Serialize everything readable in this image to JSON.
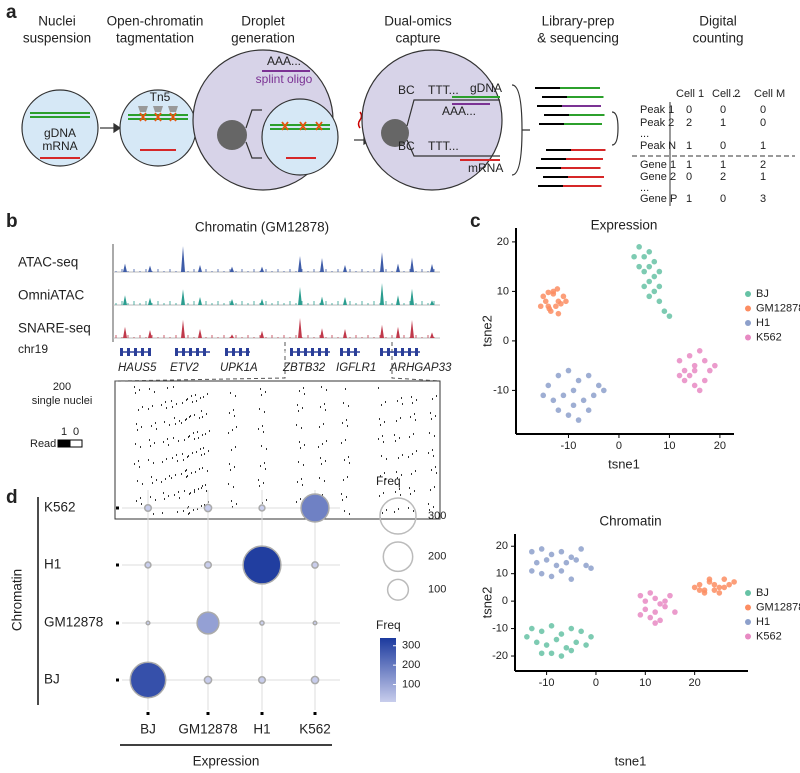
{
  "panel_a": {
    "label": "a",
    "steps": [
      [
        "Nuclei",
        "suspension"
      ],
      [
        "Open-chromatin",
        "tagmentation"
      ],
      [
        "Droplet",
        "generation"
      ],
      [
        "Dual-omics",
        "capture"
      ],
      [
        "Library-prep",
        "& sequencing"
      ],
      [
        "Digital",
        "counting"
      ]
    ],
    "nuclei": {
      "gdna": "gDNA",
      "mrna": "mRNA"
    },
    "tagmentation": {
      "enzyme": "Tn5"
    },
    "droplet": {
      "polya": "AAA...",
      "oligo": "splint oligo"
    },
    "capture": {
      "bc_top": "BC",
      "ttt_top": "TTT...",
      "gdna": "gDNA",
      "polya": "AAA...",
      "bc_bottom": "BC",
      "ttt_bottom": "TTT...",
      "mrna": "mRNA"
    },
    "table": {
      "header": [
        "Cell 1",
        "Cell 2",
        "...",
        "Cell M"
      ],
      "rows": [
        [
          "Peak 1",
          0,
          0,
          0
        ],
        [
          "Peak 2",
          2,
          1,
          0
        ],
        [
          "..."
        ],
        [
          "Peak N",
          1,
          0,
          1
        ],
        [
          "Gene 1",
          1,
          1,
          2
        ],
        [
          "Gene 2",
          0,
          2,
          1
        ],
        [
          "..."
        ],
        [
          "Gene P",
          1,
          0,
          3
        ]
      ]
    }
  },
  "panel_b": {
    "label": "b",
    "title": "Chromatin (GM12878)",
    "tracks": [
      "ATAC-seq",
      "OmniATAC",
      "SNARE-seq"
    ],
    "chrom": "chr19",
    "genes": [
      "HAUS5",
      "ETV2",
      "UPK1A",
      "ZBTB32",
      "IGFLR1",
      "ARHGAP33"
    ],
    "nuclei_label": [
      "200",
      "single nuclei"
    ],
    "read_legend": {
      "label": "Read",
      "high": 1,
      "low": 0
    }
  },
  "panel_c": {
    "label": "c"
  },
  "panel_d": {
    "label": "d"
  },
  "chart_data": [
    {
      "type": "scatter",
      "title": "Expression",
      "x_label": "tsne1",
      "y_label": "tsne2",
      "xlim": [
        -20,
        22
      ],
      "ylim": [
        -18,
        22
      ],
      "xticks": [
        -10,
        0,
        10,
        20
      ],
      "yticks": [
        -10,
        0,
        10,
        20
      ],
      "series": [
        {
          "name": "BJ",
          "color": "#66c2a5",
          "x": [
            4,
            5,
            6,
            7,
            8,
            5,
            6,
            7,
            8,
            9,
            6,
            7,
            4,
            5,
            8,
            6,
            10,
            3
          ],
          "values": [
            19,
            17,
            15,
            13,
            11,
            14,
            12,
            10,
            8,
            6,
            18,
            16,
            15,
            11,
            14,
            9,
            5,
            17
          ]
        },
        {
          "name": "GM12878",
          "color": "#fc8d62",
          "x": [
            -15,
            -14,
            -13,
            -12,
            -11,
            -13.5,
            -12.5,
            -14.5,
            -11.5,
            -13,
            -12,
            -15.5,
            -10.5,
            -13.8,
            -12.2,
            -14
          ],
          "values": [
            9,
            7,
            10,
            8,
            9,
            6,
            7,
            8,
            7.5,
            9.5,
            5.5,
            7,
            8,
            6.5,
            10.5,
            9.8
          ]
        },
        {
          "name": "H1",
          "color": "#8da0cb",
          "x": [
            -14,
            -12,
            -10,
            -8,
            -6,
            -4,
            -13,
            -11,
            -9,
            -7,
            -5,
            -10,
            -8,
            -12,
            -6,
            -9,
            -3,
            -15
          ],
          "values": [
            -9,
            -7,
            -6,
            -8,
            -7,
            -9,
            -12,
            -11,
            -13,
            -12,
            -11,
            -15,
            -16,
            -14,
            -14,
            -10,
            -10,
            -11
          ]
        },
        {
          "name": "K562",
          "color": "#e78ac3",
          "x": [
            12,
            13,
            14,
            15,
            16,
            17,
            18,
            13,
            15,
            17,
            14,
            16,
            19,
            12,
            15
          ],
          "values": [
            -4,
            -6,
            -3,
            -5,
            -2,
            -4,
            -6,
            -8,
            -9,
            -8,
            -7,
            -10,
            -5,
            -7,
            -6
          ]
        }
      ]
    },
    {
      "type": "scatter",
      "title": "Chromatin",
      "x_label": "tsne1",
      "y_label": "tsne2",
      "xlim": [
        -16,
        30
      ],
      "ylim": [
        -24,
        23
      ],
      "xticks": [
        -10,
        0,
        10,
        20
      ],
      "yticks": [
        -20,
        -10,
        0,
        10,
        20
      ],
      "series": [
        {
          "name": "BJ",
          "color": "#66c2a5",
          "x": [
            -13,
            -11,
            -9,
            -7,
            -5,
            -3,
            -1,
            -12,
            -10,
            -8,
            -6,
            -4,
            -2,
            -9,
            -7,
            -5,
            -11,
            -14
          ],
          "values": [
            -10,
            -11,
            -9,
            -12,
            -10,
            -11,
            -13,
            -15,
            -16,
            -14,
            -17,
            -15,
            -16,
            -19,
            -20,
            -18,
            -19,
            -13
          ]
        },
        {
          "name": "GM12878",
          "color": "#fc8d62",
          "x": [
            20,
            21,
            22,
            23,
            24,
            25,
            26,
            27,
            22,
            24,
            26,
            23,
            25,
            21,
            28
          ],
          "values": [
            5,
            6,
            4,
            7,
            6,
            5,
            8,
            6,
            3,
            4,
            5,
            8,
            3,
            4,
            7
          ]
        },
        {
          "name": "H1",
          "color": "#8da0cb",
          "x": [
            -13,
            -11,
            -9,
            -7,
            -5,
            -3,
            -12,
            -10,
            -8,
            -6,
            -4,
            -2,
            -11,
            -9,
            -7,
            -5,
            -13,
            -1
          ],
          "values": [
            18,
            19,
            17,
            18,
            16,
            19,
            14,
            15,
            13,
            14,
            15,
            13,
            10,
            9,
            11,
            8,
            11,
            12
          ]
        },
        {
          "name": "K562",
          "color": "#e78ac3",
          "x": [
            9,
            10,
            11,
            12,
            13,
            14,
            15,
            10,
            12,
            14,
            11,
            13,
            16,
            9,
            12
          ],
          "values": [
            2,
            0,
            3,
            1,
            -1,
            0,
            2,
            -3,
            -4,
            -2,
            -6,
            -7,
            -4,
            -5,
            -8
          ]
        }
      ]
    },
    {
      "type": "bubble",
      "x_label": "Expression",
      "y_label": "Chromatin",
      "x_categories": [
        "BJ",
        "GM12878",
        "H1",
        "K562"
      ],
      "y_categories": [
        "BJ",
        "GM12878",
        "H1",
        "K562"
      ],
      "values": [
        [
          290,
          12,
          10,
          12
        ],
        [
          3,
          110,
          4,
          3
        ],
        [
          8,
          10,
          330,
          9
        ],
        [
          10,
          12,
          8,
          180
        ]
      ],
      "size_title": "Freq",
      "size_ticks": [
        300,
        200,
        100
      ],
      "color_title": "Freq",
      "color_range": [
        10,
        340
      ],
      "color_ticks": [
        300,
        200,
        100
      ],
      "color_low": "#c8cdec",
      "color_high": "#1c3a9e"
    }
  ]
}
